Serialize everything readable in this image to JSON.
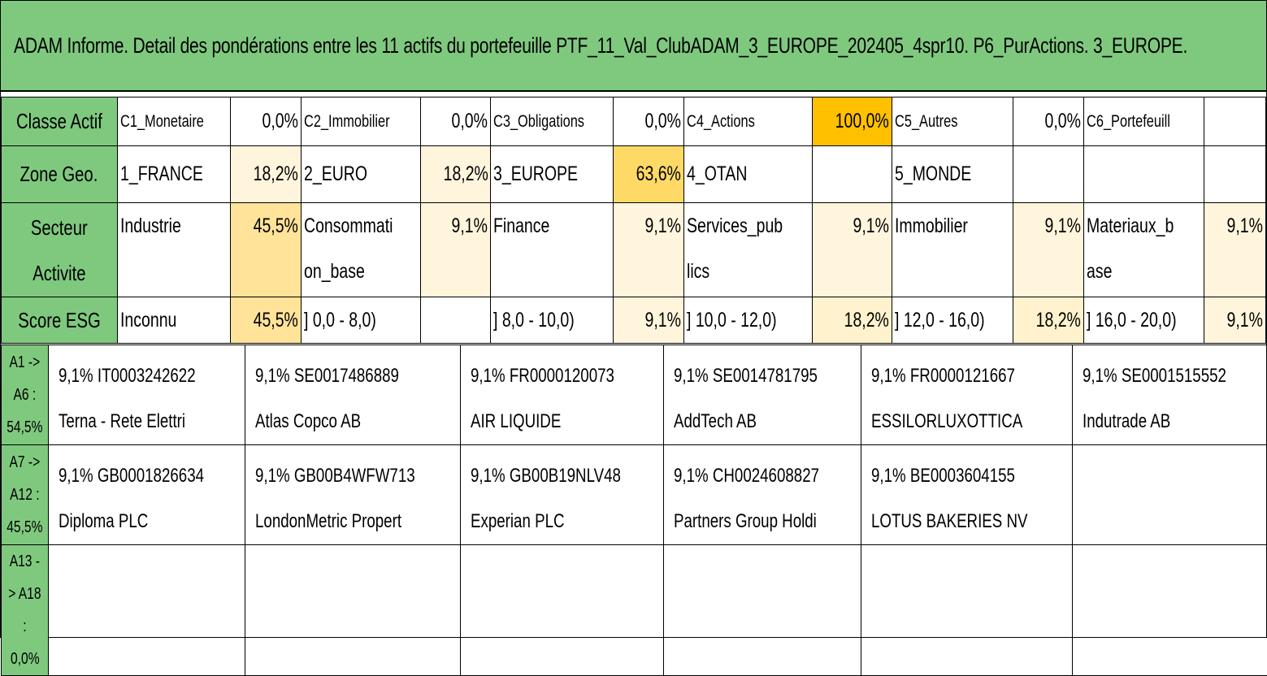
{
  "title": "ADAM Informe. Detail des pondérations entre les 11 actifs du portefeuille PTF_11_Val_ClubADAM_3_EUROPE_202405_4spr10. P6_PurActions. 3_EUROPE.",
  "classe_actif": {
    "label": "Classe Actif",
    "items": [
      {
        "name": "C1_Monetaire",
        "value": "0,0%"
      },
      {
        "name": "C2_Immobilier",
        "value": "0,0%"
      },
      {
        "name": "C3_Obligations",
        "value": "0,0%"
      },
      {
        "name": "C4_Actions",
        "value": "100,0%"
      },
      {
        "name": "C5_Autres",
        "value": "0,0%"
      },
      {
        "name": "C6_Portefeuill",
        "value": ""
      }
    ]
  },
  "zone_geo": {
    "label": "Zone Geo.",
    "items": [
      {
        "name": "1_FRANCE",
        "value": "18,2%"
      },
      {
        "name": "2_EURO",
        "value": "18,2%"
      },
      {
        "name": "3_EUROPE",
        "value": "63,6%"
      },
      {
        "name": "4_OTAN",
        "value": ""
      },
      {
        "name": "5_MONDE",
        "value": ""
      },
      {
        "name": "",
        "value": ""
      }
    ]
  },
  "secteur": {
    "label_line1": "Secteur",
    "label_line2": "Activite",
    "items": [
      {
        "name_line1": "Industrie",
        "name_line2": "",
        "value": "45,5%"
      },
      {
        "name_line1": "Consommati",
        "name_line2": "on_base",
        "value": "9,1%"
      },
      {
        "name_line1": "Finance",
        "name_line2": "",
        "value": "9,1%"
      },
      {
        "name_line1": "Services_pub",
        "name_line2": "lics",
        "value": "9,1%"
      },
      {
        "name_line1": "Immobilier",
        "name_line2": "",
        "value": "9,1%"
      },
      {
        "name_line1": "Materiaux_b",
        "name_line2": "ase",
        "value": "9,1%"
      }
    ]
  },
  "score_esg": {
    "label": "Score ESG",
    "items": [
      {
        "name": "Inconnu",
        "value": "45,5%"
      },
      {
        "name": "] 0,0 - 8,0)",
        "value": ""
      },
      {
        "name": "] 8,0 - 10,0)",
        "value": "9,1%"
      },
      {
        "name": "] 10,0 - 12,0)",
        "value": "18,2%"
      },
      {
        "name": "] 12,0 - 16,0)",
        "value": "18,2%"
      },
      {
        "name": "] 16,0 - 20,0)",
        "value": "9,1%"
      }
    ]
  },
  "asset_rows": [
    {
      "label_line1": "A1 -> A6 :",
      "label_line2": "54,5%",
      "assets": [
        {
          "line1": "9,1% IT0003242622",
          "line2": "Terna - Rete Elettri"
        },
        {
          "line1": "9,1% SE0017486889",
          "line2": "Atlas Copco AB"
        },
        {
          "line1": "9,1% FR0000120073",
          "line2": "AIR LIQUIDE"
        },
        {
          "line1": "9,1% SE0014781795",
          "line2": "AddTech AB"
        },
        {
          "line1": "9,1% FR0000121667",
          "line2": "ESSILORLUXOTTICA"
        },
        {
          "line1": "9,1% SE0001515552",
          "line2": "Indutrade AB"
        }
      ]
    },
    {
      "label_line1": "A7 -> A12 :",
      "label_line2": "45,5%",
      "assets": [
        {
          "line1": "9,1% GB0001826634",
          "line2": "Diploma PLC"
        },
        {
          "line1": "9,1% GB00B4WFW713",
          "line2": "LondonMetric Propert"
        },
        {
          "line1": "9,1% GB00B19NLV48",
          "line2": "Experian PLC"
        },
        {
          "line1": "9,1% CH0024608827",
          "line2": "Partners Group Holdi"
        },
        {
          "line1": "9,1% BE0003604155",
          "line2": "LOTUS BAKERIES NV"
        },
        {
          "line1": "",
          "line2": ""
        }
      ]
    },
    {
      "label_line1": "A13 -> A18 :",
      "label_line2": "0,0%",
      "assets": [
        {
          "line1": "",
          "line2": ""
        },
        {
          "line1": "",
          "line2": ""
        },
        {
          "line1": "",
          "line2": ""
        },
        {
          "line1": "",
          "line2": ""
        },
        {
          "line1": "",
          "line2": ""
        },
        {
          "line1": "",
          "line2": ""
        }
      ]
    }
  ],
  "colors": {
    "header_green": "#7fc97f",
    "highlight_orange": "#ffc000",
    "highlight_yellow": "#ffd966",
    "highlight_light": "#ffe399",
    "highlight_pale": "#fff5dc"
  }
}
